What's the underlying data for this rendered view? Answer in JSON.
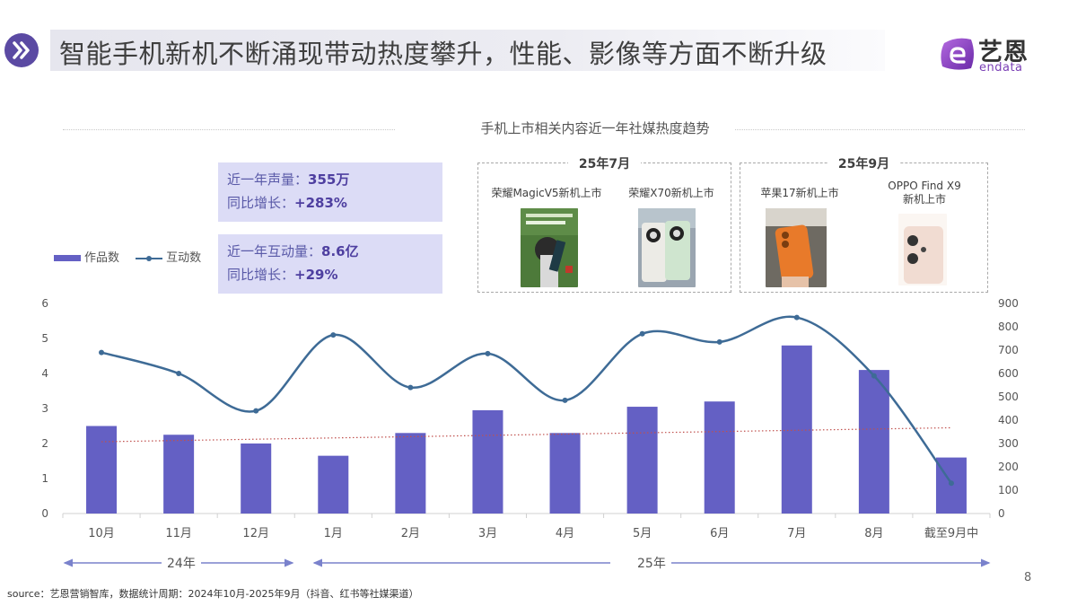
{
  "header": {
    "title": "智能手机新机不断涌现带动热度攀升，性能、影像等方面不断升级",
    "badge_icon": "double-chevron-right-icon",
    "logo": {
      "cn": "艺恩",
      "en": "endata",
      "icon": "endata-e-logo-icon"
    }
  },
  "section_title": "手机上市相关内容近一年社媒热度趋势",
  "stats": [
    {
      "label1": "近一年声量：",
      "value1": "355万",
      "label2": "同比增长：",
      "value2": "+283%"
    },
    {
      "label1": "近一年互动量：",
      "value1": "8.6亿",
      "label2": "同比增长：",
      "value2": "+29%"
    }
  ],
  "legend": {
    "bar": "作品数",
    "line": "互动数"
  },
  "launches": [
    {
      "period": "25年7月",
      "items": [
        {
          "label": "荣耀MagicV5新机上市"
        },
        {
          "label": "荣耀X70新机上市"
        }
      ]
    },
    {
      "period": "25年9月",
      "items": [
        {
          "label": "苹果17新机上市"
        },
        {
          "label": "OPPO Find X9",
          "label2": "新机上市"
        }
      ]
    }
  ],
  "timeline": {
    "year_2024": "24年",
    "year_2025": "25年"
  },
  "footer": {
    "source": "source：艺恩营销智库，数据统计周期：2024年10月-2025年9月（抖音、红书等社媒渠道）",
    "page": "8"
  },
  "colors": {
    "bar": "#6460c4",
    "line": "#3e6b96",
    "trend": "#c0504d",
    "accent": "#5b4aa3",
    "stat_bg": "#dcdcf6"
  },
  "chart_data": {
    "type": "bar",
    "title": "手机上市相关内容近一年社媒热度趋势",
    "categories": [
      "10月",
      "11月",
      "12月",
      "1月",
      "2月",
      "3月",
      "4月",
      "5月",
      "6月",
      "7月",
      "8月",
      "截至9月中"
    ],
    "series": [
      {
        "name": "作品数",
        "type": "bar",
        "axis": "left",
        "values": [
          2.5,
          2.25,
          2.0,
          1.65,
          2.3,
          2.95,
          2.3,
          3.05,
          3.2,
          4.8,
          4.1,
          1.6
        ]
      },
      {
        "name": "互动数",
        "type": "line",
        "axis": "right",
        "smooth": true,
        "values": [
          690,
          600,
          440,
          765,
          540,
          685,
          485,
          770,
          735,
          840,
          590,
          130
        ]
      },
      {
        "name": "趋势线",
        "type": "line",
        "axis": "left",
        "style": "dotted",
        "values_endpoints": [
          2.05,
          2.45
        ]
      }
    ],
    "y_left": {
      "min": 0,
      "max": 6,
      "ticks": [
        0,
        1,
        2,
        3,
        4,
        5,
        6
      ]
    },
    "y_right": {
      "min": 0,
      "max": 900,
      "ticks": [
        0,
        100,
        200,
        300,
        400,
        500,
        600,
        700,
        800,
        900
      ]
    },
    "xlabel": "",
    "ylabel": "",
    "year_groups": [
      {
        "label": "24年",
        "range": [
          "10月",
          "12月"
        ]
      },
      {
        "label": "25年",
        "range": [
          "1月",
          "截至9月中"
        ]
      }
    ],
    "grid": false,
    "legend_position": "top-left"
  }
}
